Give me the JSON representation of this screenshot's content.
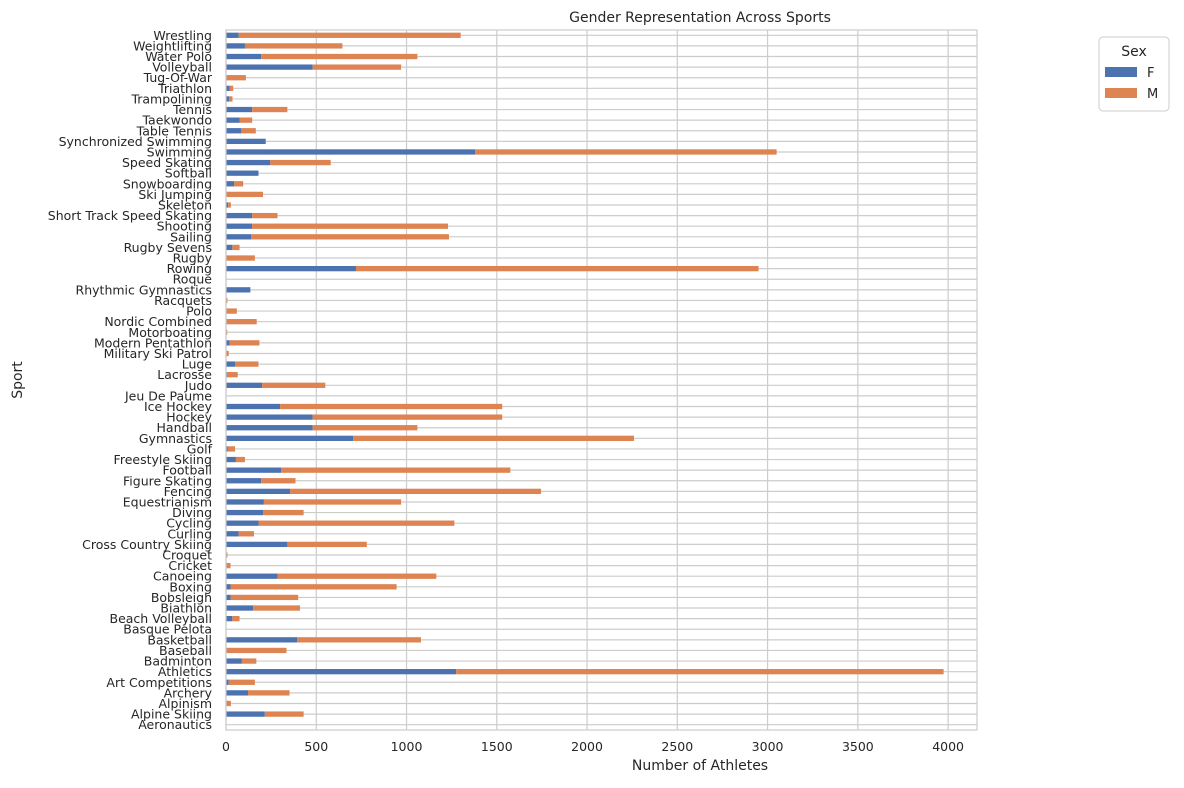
{
  "chart_data": {
    "type": "bar",
    "orientation": "horizontal",
    "stacked": true,
    "title": "Gender Representation Across Sports",
    "xlabel": "Number of Athletes",
    "ylabel": "Sport",
    "xlim": [
      0,
      4160
    ],
    "xticks": [
      0,
      500,
      1000,
      1500,
      2000,
      2500,
      3000,
      3500,
      4000
    ],
    "grid": true,
    "legend": {
      "title": "Sex",
      "position": "top-right"
    },
    "categories": [
      "Aeronautics",
      "Alpine Skiing",
      "Alpinism",
      "Archery",
      "Art Competitions",
      "Athletics",
      "Badminton",
      "Baseball",
      "Basketball",
      "Basque Pelota",
      "Beach Volleyball",
      "Biathlon",
      "Bobsleigh",
      "Boxing",
      "Canoeing",
      "Cricket",
      "Croquet",
      "Cross Country Skiing",
      "Curling",
      "Cycling",
      "Diving",
      "Equestrianism",
      "Fencing",
      "Figure Skating",
      "Football",
      "Freestyle Skiing",
      "Golf",
      "Gymnastics",
      "Handball",
      "Hockey",
      "Ice Hockey",
      "Jeu De Paume",
      "Judo",
      "Lacrosse",
      "Luge",
      "Military Ski Patrol",
      "Modern Pentathlon",
      "Motorboating",
      "Nordic Combined",
      "Polo",
      "Racquets",
      "Rhythmic Gymnastics",
      "Roque",
      "Rowing",
      "Rugby",
      "Rugby Sevens",
      "Sailing",
      "Shooting",
      "Short Track Speed Skating",
      "Skeleton",
      "Ski Jumping",
      "Snowboarding",
      "Softball",
      "Speed Skating",
      "Swimming",
      "Synchronized Swimming",
      "Table Tennis",
      "Taekwondo",
      "Tennis",
      "Trampolining",
      "Triathlon",
      "Tug-Of-War",
      "Volleyball",
      "Water Polo",
      "Weightlifting",
      "Wrestling"
    ],
    "series": [
      {
        "name": "F",
        "color": "#4c72b0",
        "values": [
          0,
          215,
          2,
          122,
          15,
          1275,
          88,
          0,
          395,
          0,
          35,
          150,
          25,
          25,
          285,
          0,
          3,
          340,
          70,
          180,
          205,
          210,
          355,
          195,
          305,
          55,
          10,
          705,
          480,
          480,
          300,
          0,
          200,
          5,
          50,
          0,
          20,
          2,
          0,
          0,
          0,
          135,
          0,
          720,
          0,
          35,
          140,
          145,
          145,
          12,
          0,
          45,
          180,
          245,
          1380,
          220,
          85,
          75,
          145,
          18,
          20,
          0,
          480,
          195,
          105,
          70
        ]
      },
      {
        "name": "M",
        "color": "#dd8452",
        "values": [
          1,
          215,
          25,
          230,
          145,
          2700,
          80,
          335,
          685,
          2,
          40,
          260,
          375,
          920,
          880,
          25,
          5,
          440,
          85,
          1085,
          225,
          760,
          1390,
          190,
          1270,
          50,
          40,
          1555,
          580,
          1050,
          1230,
          2,
          350,
          60,
          130,
          15,
          165,
          5,
          170,
          60,
          8,
          0,
          3,
          2230,
          160,
          40,
          1095,
          1085,
          140,
          15,
          205,
          50,
          0,
          335,
          1670,
          0,
          80,
          70,
          195,
          18,
          20,
          110,
          490,
          865,
          540,
          1230
        ]
      }
    ]
  }
}
